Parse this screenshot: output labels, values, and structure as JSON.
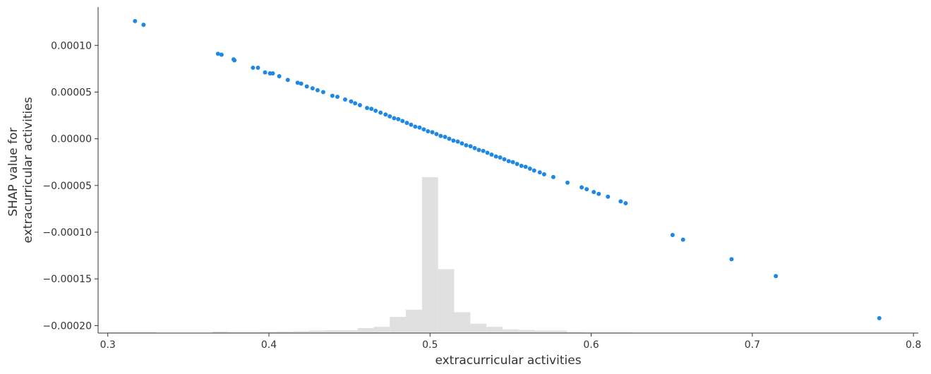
{
  "chart_data": {
    "type": "scatter",
    "xlabel": "extracurricular activities",
    "ylabel_lines": [
      "SHAP value for",
      "extracurricular activities"
    ],
    "xlim": [
      0.294,
      0.803
    ],
    "ylim": [
      -0.000208,
      0.000141
    ],
    "x_ticks": [
      {
        "value": 0.3,
        "label": "0.3"
      },
      {
        "value": 0.4,
        "label": "0.4"
      },
      {
        "value": 0.5,
        "label": "0.5"
      },
      {
        "value": 0.6,
        "label": "0.6"
      },
      {
        "value": 0.7,
        "label": "0.7"
      },
      {
        "value": 0.8,
        "label": "0.8"
      }
    ],
    "y_ticks": [
      {
        "value": 0.0001,
        "label": "0.00010"
      },
      {
        "value": 5e-05,
        "label": "0.00005"
      },
      {
        "value": 0.0,
        "label": "0.00000"
      },
      {
        "value": -5e-05,
        "label": "−0.00005"
      },
      {
        "value": -0.0001,
        "label": "−0.00010"
      },
      {
        "value": -0.00015,
        "label": "−0.00015"
      },
      {
        "value": -0.0002,
        "label": "−0.00020"
      }
    ],
    "grid": false,
    "point_color": "#1E88E5",
    "hist_color": "#E0E0E0",
    "points": [
      [
        0.3169,
        0.000126
      ],
      [
        0.3222,
        0.000122
      ],
      [
        0.3684,
        9.1e-05
      ],
      [
        0.3706,
        9e-05
      ],
      [
        0.3781,
        8.5e-05
      ],
      [
        0.3786,
        8.4e-05
      ],
      [
        0.3901,
        7.6e-05
      ],
      [
        0.3932,
        7.6e-05
      ],
      [
        0.3976,
        7.1e-05
      ],
      [
        0.4007,
        7e-05
      ],
      [
        0.4024,
        7e-05
      ],
      [
        0.4064,
        6.7e-05
      ],
      [
        0.4117,
        6.3e-05
      ],
      [
        0.4178,
        6e-05
      ],
      [
        0.42,
        5.9e-05
      ],
      [
        0.4235,
        5.6e-05
      ],
      [
        0.4271,
        5.4e-05
      ],
      [
        0.4302,
        5.2e-05
      ],
      [
        0.4337,
        5e-05
      ],
      [
        0.4394,
        4.6e-05
      ],
      [
        0.4425,
        4.5e-05
      ],
      [
        0.4473,
        4.2e-05
      ],
      [
        0.451,
        4e-05
      ],
      [
        0.4535,
        3.8e-05
      ],
      [
        0.4565,
        3.6e-05
      ],
      [
        0.4609,
        3.3e-05
      ],
      [
        0.4636,
        3.2e-05
      ],
      [
        0.4662,
        3e-05
      ],
      [
        0.4693,
        2.8e-05
      ],
      [
        0.4724,
        2.6e-05
      ],
      [
        0.475,
        2.4e-05
      ],
      [
        0.4777,
        2.2e-05
      ],
      [
        0.4803,
        2.1e-05
      ],
      [
        0.4829,
        1.9e-05
      ],
      [
        0.4856,
        1.7e-05
      ],
      [
        0.4882,
        1.5e-05
      ],
      [
        0.4908,
        1.3e-05
      ],
      [
        0.4935,
        1.2e-05
      ],
      [
        0.4961,
        1e-05
      ],
      [
        0.4987,
        8e-06
      ],
      [
        0.5014,
        7e-06
      ],
      [
        0.504,
        5e-06
      ],
      [
        0.5066,
        3e-06
      ],
      [
        0.5093,
        2e-06
      ],
      [
        0.5119,
        0.0
      ],
      [
        0.5145,
        -2e-06
      ],
      [
        0.5172,
        -3e-06
      ],
      [
        0.5198,
        -5e-06
      ],
      [
        0.5224,
        -7e-06
      ],
      [
        0.5251,
        -8e-06
      ],
      [
        0.5277,
        -1e-05
      ],
      [
        0.5303,
        -1.2e-05
      ],
      [
        0.533,
        -1.3e-05
      ],
      [
        0.5356,
        -1.5e-05
      ],
      [
        0.5382,
        -1.7e-05
      ],
      [
        0.5409,
        -1.9e-05
      ],
      [
        0.5435,
        -2e-05
      ],
      [
        0.5461,
        -2.2e-05
      ],
      [
        0.5488,
        -2.4e-05
      ],
      [
        0.5514,
        -2.5e-05
      ],
      [
        0.554,
        -2.7e-05
      ],
      [
        0.5567,
        -2.9e-05
      ],
      [
        0.5593,
        -3e-05
      ],
      [
        0.562,
        -3.2e-05
      ],
      [
        0.5646,
        -3.4e-05
      ],
      [
        0.5681,
        -3.6e-05
      ],
      [
        0.5708,
        -3.8e-05
      ],
      [
        0.5765,
        -4.1e-05
      ],
      [
        0.5853,
        -4.7e-05
      ],
      [
        0.5941,
        -5.2e-05
      ],
      [
        0.5972,
        -5.4e-05
      ],
      [
        0.6016,
        -5.7e-05
      ],
      [
        0.6047,
        -5.9e-05
      ],
      [
        0.6104,
        -6.2e-05
      ],
      [
        0.6183,
        -6.7e-05
      ],
      [
        0.6214,
        -6.9e-05
      ],
      [
        0.6505,
        -0.000103
      ],
      [
        0.657,
        -0.000108
      ],
      [
        0.6871,
        -0.000129
      ],
      [
        0.7146,
        -0.000147
      ],
      [
        0.7788,
        -0.000192
      ]
    ],
    "histogram": [
      {
        "x0": 0.3,
        "x1": 0.31,
        "count": 0.3
      },
      {
        "x0": 0.31,
        "x1": 0.32,
        "count": 0.3
      },
      {
        "x0": 0.32,
        "x1": 0.33,
        "count": 0.3
      },
      {
        "x0": 0.365,
        "x1": 0.375,
        "count": 0.5
      },
      {
        "x0": 0.375,
        "x1": 0.385,
        "count": 0.3
      },
      {
        "x0": 0.385,
        "x1": 0.395,
        "count": 0.3
      },
      {
        "x0": 0.395,
        "x1": 0.405,
        "count": 0.4
      },
      {
        "x0": 0.405,
        "x1": 0.415,
        "count": 0.5
      },
      {
        "x0": 0.415,
        "x1": 0.425,
        "count": 0.6
      },
      {
        "x0": 0.425,
        "x1": 0.435,
        "count": 0.8
      },
      {
        "x0": 0.435,
        "x1": 0.445,
        "count": 0.9
      },
      {
        "x0": 0.445,
        "x1": 0.455,
        "count": 0.9
      },
      {
        "x0": 0.455,
        "x1": 0.465,
        "count": 1.6
      },
      {
        "x0": 0.465,
        "x1": 0.475,
        "count": 2.0
      },
      {
        "x0": 0.475,
        "x1": 0.485,
        "count": 5.2
      },
      {
        "x0": 0.485,
        "x1": 0.495,
        "count": 7.5
      },
      {
        "x0": 0.495,
        "x1": 0.505,
        "count": 50.0
      },
      {
        "x0": 0.505,
        "x1": 0.515,
        "count": 20.5
      },
      {
        "x0": 0.515,
        "x1": 0.525,
        "count": 6.7
      },
      {
        "x0": 0.525,
        "x1": 0.535,
        "count": 3.0
      },
      {
        "x0": 0.535,
        "x1": 0.545,
        "count": 2.0
      },
      {
        "x0": 0.545,
        "x1": 0.555,
        "count": 1.2
      },
      {
        "x0": 0.555,
        "x1": 0.565,
        "count": 1.0
      },
      {
        "x0": 0.565,
        "x1": 0.575,
        "count": 0.8
      },
      {
        "x0": 0.575,
        "x1": 0.585,
        "count": 0.8
      },
      {
        "x0": 0.585,
        "x1": 0.595,
        "count": 0.3
      },
      {
        "x0": 0.595,
        "x1": 0.625,
        "count": 0.2
      }
    ]
  }
}
